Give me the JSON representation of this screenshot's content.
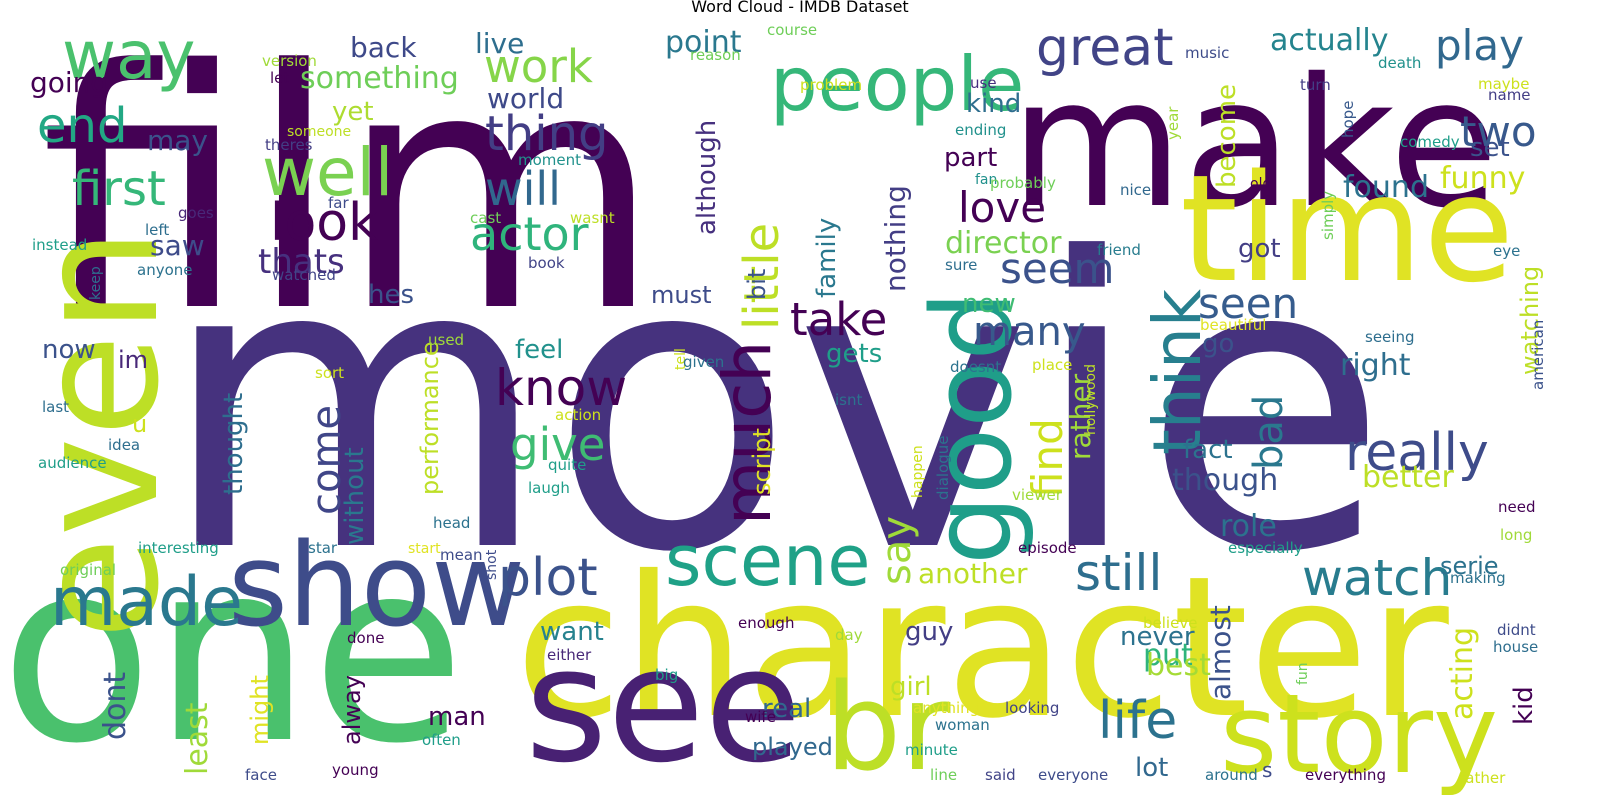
{
  "chart_data": {
    "type": "wordcloud",
    "title": "Word Cloud - IMDB Dataset",
    "colormap": "viridis",
    "background": "#ffffff",
    "colors": {
      "dark_purple": "#440154",
      "purple": "#46327e",
      "indigo": "#365c8d",
      "blue": "#277f8e",
      "teal": "#1fa187",
      "green": "#4ac16d",
      "lime": "#a0da39",
      "yellow": "#e0e324"
    },
    "words": [
      {
        "text": "movie",
        "weight": 1.0,
        "color": "#46327e"
      },
      {
        "text": "film",
        "weight": 0.82,
        "color": "#440154"
      },
      {
        "text": "one",
        "weight": 0.63,
        "color": "#4ac16d"
      },
      {
        "text": "character",
        "weight": 0.5,
        "color": "#e0e324"
      },
      {
        "text": "make",
        "weight": 0.44,
        "color": "#440154"
      },
      {
        "text": "even",
        "weight": 0.42,
        "color": "#bddf26"
      },
      {
        "text": "time",
        "weight": 0.4,
        "color": "#e0e324"
      },
      {
        "text": "see",
        "weight": 0.4,
        "color": "#482173"
      },
      {
        "text": "show",
        "weight": 0.29,
        "color": "#3e4c8a"
      },
      {
        "text": "br",
        "weight": 0.3,
        "color": "#bddf26"
      },
      {
        "text": "story",
        "weight": 0.28,
        "color": "#cde11d"
      },
      {
        "text": "good",
        "weight": 0.27,
        "color": "#1f9e89"
      },
      {
        "text": "people",
        "weight": 0.24,
        "color": "#35b779"
      },
      {
        "text": "scene",
        "weight": 0.22,
        "color": "#1fa187"
      },
      {
        "text": "made",
        "weight": 0.2,
        "color": "#2a788e"
      },
      {
        "text": "way",
        "weight": 0.2,
        "color": "#4ac16d"
      },
      {
        "text": "much",
        "weight": 0.2,
        "color": "#440154"
      },
      {
        "text": "think",
        "weight": 0.2,
        "color": "#277f8e"
      },
      {
        "text": "well",
        "weight": 0.18,
        "color": "#7ad151"
      },
      {
        "text": "great",
        "weight": 0.17,
        "color": "#414487"
      },
      {
        "text": "plot",
        "weight": 0.16,
        "color": "#3b528b"
      },
      {
        "text": "really",
        "weight": 0.16,
        "color": "#3e4c8a"
      },
      {
        "text": "life",
        "weight": 0.15,
        "color": "#2c728e"
      },
      {
        "text": "watch",
        "weight": 0.15,
        "color": "#287c8e"
      },
      {
        "text": "still",
        "weight": 0.15,
        "color": "#2e6e8e"
      },
      {
        "text": "know",
        "weight": 0.15,
        "color": "#440154"
      },
      {
        "text": "look",
        "weight": 0.15,
        "color": "#440154"
      },
      {
        "text": "thing",
        "weight": 0.15,
        "color": "#433e85"
      },
      {
        "text": "first",
        "weight": 0.14,
        "color": "#35b779"
      },
      {
        "text": "end",
        "weight": 0.14,
        "color": "#22a884"
      },
      {
        "text": "little",
        "weight": 0.14,
        "color": "#bddf26"
      },
      {
        "text": "actor",
        "weight": 0.14,
        "color": "#2fb47c"
      },
      {
        "text": "will",
        "weight": 0.14,
        "color": "#31688e"
      },
      {
        "text": "take",
        "weight": 0.13,
        "color": "#440154"
      },
      {
        "text": "give",
        "weight": 0.13,
        "color": "#3fbc73"
      },
      {
        "text": "work",
        "weight": 0.13,
        "color": "#86d549"
      },
      {
        "text": "two",
        "weight": 0.13,
        "color": "#38598c"
      },
      {
        "text": "play",
        "weight": 0.13,
        "color": "#31688e"
      },
      {
        "text": "seen",
        "weight": 0.12,
        "color": "#365c8d"
      },
      {
        "text": "seem",
        "weight": 0.12,
        "color": "#3b528b"
      },
      {
        "text": "love",
        "weight": 0.12,
        "color": "#440154"
      },
      {
        "text": "many",
        "weight": 0.12,
        "color": "#38598c"
      },
      {
        "text": "find",
        "weight": 0.12,
        "color": "#cde11d"
      },
      {
        "text": "bad",
        "weight": 0.12,
        "color": "#2a788e"
      },
      {
        "text": "come",
        "weight": 0.12,
        "color": "#404688"
      },
      {
        "text": "say",
        "weight": 0.12,
        "color": "#a0da39"
      },
      {
        "text": "thats",
        "weight": 0.1,
        "color": "#46307e"
      },
      {
        "text": "actually",
        "weight": 0.1,
        "color": "#25848e"
      },
      {
        "text": "something",
        "weight": 0.1,
        "color": "#6ece58"
      },
      {
        "text": "director",
        "weight": 0.1,
        "color": "#7ad151"
      },
      {
        "text": "point",
        "weight": 0.1,
        "color": "#2a788e"
      },
      {
        "text": "least",
        "weight": 0.1,
        "color": "#a0da39"
      },
      {
        "text": "dont",
        "weight": 0.1,
        "color": "#3b528b"
      },
      {
        "text": "put",
        "weight": 0.1,
        "color": "#2fb47c"
      },
      {
        "text": "best",
        "weight": 0.1,
        "color": "#a5db36"
      },
      {
        "text": "though",
        "weight": 0.1,
        "color": "#3b528b"
      },
      {
        "text": "acting",
        "weight": 0.1,
        "color": "#cde11d"
      },
      {
        "text": "funny",
        "weight": 0.1,
        "color": "#cde11d"
      },
      {
        "text": "found",
        "weight": 0.1,
        "color": "#2c728e"
      },
      {
        "text": "right",
        "weight": 0.1,
        "color": "#2e6e8e"
      },
      {
        "text": "role",
        "weight": 0.1,
        "color": "#2c728e"
      },
      {
        "text": "better",
        "weight": 0.1,
        "color": "#bddf26"
      },
      {
        "text": "another",
        "weight": 0.1,
        "color": "#bddf26"
      },
      {
        "text": "nothing",
        "weight": 0.1,
        "color": "#433e85"
      },
      {
        "text": "rather",
        "weight": 0.1,
        "color": "#a0da39"
      },
      {
        "text": "almost",
        "weight": 0.1,
        "color": "#3b528b"
      },
      {
        "text": "become",
        "weight": 0.1,
        "color": "#bddf26"
      },
      {
        "text": "back",
        "weight": 0.09,
        "color": "#3e4989"
      },
      {
        "text": "world",
        "weight": 0.09,
        "color": "#3e4989"
      },
      {
        "text": "live",
        "weight": 0.09,
        "color": "#2e6e8e"
      },
      {
        "text": "going",
        "weight": 0.09,
        "color": "#440154"
      },
      {
        "text": "may",
        "weight": 0.09,
        "color": "#3b528b"
      },
      {
        "text": "saw",
        "weight": 0.09,
        "color": "#3e4c8a"
      },
      {
        "text": "yet",
        "weight": 0.09,
        "color": "#addc30"
      },
      {
        "text": "although",
        "weight": 0.09,
        "color": "#46307e"
      },
      {
        "text": "kind",
        "weight": 0.09,
        "color": "#2e6e8e"
      },
      {
        "text": "set",
        "weight": 0.09,
        "color": "#3b528b"
      },
      {
        "text": "part",
        "weight": 0.09,
        "color": "#440154"
      },
      {
        "text": "family",
        "weight": 0.09,
        "color": "#2a788e"
      },
      {
        "text": "got",
        "weight": 0.09,
        "color": "#433e85"
      },
      {
        "text": "new",
        "weight": 0.09,
        "color": "#3fbc73"
      },
      {
        "text": "hes",
        "weight": 0.09,
        "color": "#3b528b"
      },
      {
        "text": "go",
        "weight": 0.09,
        "color": "#3b528b"
      },
      {
        "text": "gets",
        "weight": 0.09,
        "color": "#1f9e89"
      },
      {
        "text": "feel",
        "weight": 0.09,
        "color": "#21918c"
      },
      {
        "text": "must",
        "weight": 0.09,
        "color": "#3e4c8a"
      },
      {
        "text": "bit",
        "weight": 0.09,
        "color": "#3b528b"
      },
      {
        "text": "watching",
        "weight": 0.09,
        "color": "#bddf26"
      },
      {
        "text": "fact",
        "weight": 0.09,
        "color": "#2c728e"
      },
      {
        "text": "without",
        "weight": 0.09,
        "color": "#2a788e"
      },
      {
        "text": "thought",
        "weight": 0.09,
        "color": "#2e6e8e"
      },
      {
        "text": "performance",
        "weight": 0.09,
        "color": "#bddf26"
      },
      {
        "text": "script",
        "weight": 0.09,
        "color": "#e0e324"
      },
      {
        "text": "now",
        "weight": 0.09,
        "color": "#3b528b"
      },
      {
        "text": "im",
        "weight": 0.09,
        "color": "#482878"
      },
      {
        "text": "want",
        "weight": 0.09,
        "color": "#26828e"
      },
      {
        "text": "never",
        "weight": 0.09,
        "color": "#2c728e"
      },
      {
        "text": "guy",
        "weight": 0.09,
        "color": "#433e85"
      },
      {
        "text": "girl",
        "weight": 0.09,
        "color": "#bddf26"
      },
      {
        "text": "serie",
        "weight": 0.09,
        "color": "#2c728e"
      },
      {
        "text": "might",
        "weight": 0.09,
        "color": "#e0e324"
      },
      {
        "text": "alway",
        "weight": 0.09,
        "color": "#440154"
      },
      {
        "text": "man",
        "weight": 0.09,
        "color": "#440154"
      },
      {
        "text": "real",
        "weight": 0.09,
        "color": "#31688e"
      },
      {
        "text": "played",
        "weight": 0.09,
        "color": "#31688e"
      },
      {
        "text": "lot",
        "weight": 0.09,
        "color": "#31688e"
      },
      {
        "text": "kid",
        "weight": 0.09,
        "color": "#440154"
      },
      {
        "text": "u",
        "weight": 0.09,
        "color": "#cde11d"
      },
      {
        "text": "s",
        "weight": 0.08,
        "color": "#3e4c8a"
      },
      {
        "text": "course",
        "weight": 0.05,
        "color": "#6ece58"
      },
      {
        "text": "reason",
        "weight": 0.05,
        "color": "#6ece58"
      },
      {
        "text": "music",
        "weight": 0.05,
        "color": "#3e4c8a"
      },
      {
        "text": "version",
        "weight": 0.05,
        "color": "#a0da39"
      },
      {
        "text": "let",
        "weight": 0.05,
        "color": "#440154"
      },
      {
        "text": "problem",
        "weight": 0.05,
        "color": "#cde11d"
      },
      {
        "text": "use",
        "weight": 0.05,
        "color": "#46307e"
      },
      {
        "text": "turn",
        "weight": 0.05,
        "color": "#433e85"
      },
      {
        "text": "death",
        "weight": 0.05,
        "color": "#21918c"
      },
      {
        "text": "maybe",
        "weight": 0.05,
        "color": "#cde11d"
      },
      {
        "text": "name",
        "weight": 0.05,
        "color": "#433e85"
      },
      {
        "text": "someone",
        "weight": 0.05,
        "color": "#bddf26"
      },
      {
        "text": "theres",
        "weight": 0.05,
        "color": "#433e85"
      },
      {
        "text": "ending",
        "weight": 0.05,
        "color": "#21918c"
      },
      {
        "text": "year",
        "weight": 0.05,
        "color": "#a0da39"
      },
      {
        "text": "hope",
        "weight": 0.05,
        "color": "#38598c"
      },
      {
        "text": "comedy",
        "weight": 0.05,
        "color": "#1f9e89"
      },
      {
        "text": "moment",
        "weight": 0.05,
        "color": "#21918c"
      },
      {
        "text": "fan",
        "weight": 0.05,
        "color": "#21918c"
      },
      {
        "text": "probably",
        "weight": 0.05,
        "color": "#6ece58"
      },
      {
        "text": "old",
        "weight": 0.05,
        "color": "#440154"
      },
      {
        "text": "far",
        "weight": 0.05,
        "color": "#3e4c8a"
      },
      {
        "text": "nice",
        "weight": 0.05,
        "color": "#31688e"
      },
      {
        "text": "goes",
        "weight": 0.05,
        "color": "#482878"
      },
      {
        "text": "cast",
        "weight": 0.05,
        "color": "#6ece58"
      },
      {
        "text": "wasnt",
        "weight": 0.05,
        "color": "#bddf26"
      },
      {
        "text": "simply",
        "weight": 0.05,
        "color": "#6ece58"
      },
      {
        "text": "left",
        "weight": 0.05,
        "color": "#2e6e8e"
      },
      {
        "text": "instead",
        "weight": 0.05,
        "color": "#1f9e89"
      },
      {
        "text": "friend",
        "weight": 0.05,
        "color": "#287c8e"
      },
      {
        "text": "eye",
        "weight": 0.05,
        "color": "#2c728e"
      },
      {
        "text": "anyone",
        "weight": 0.05,
        "color": "#2c728e"
      },
      {
        "text": "book",
        "weight": 0.05,
        "color": "#414487"
      },
      {
        "text": "sure",
        "weight": 0.05,
        "color": "#2e6e8e"
      },
      {
        "text": "watched",
        "weight": 0.05,
        "color": "#414487"
      },
      {
        "text": "keep",
        "weight": 0.05,
        "color": "#2e6e8e"
      },
      {
        "text": "used",
        "weight": 0.05,
        "color": "#a0da39"
      },
      {
        "text": "tell",
        "weight": 0.05,
        "color": "#cde11d"
      },
      {
        "text": "beautiful",
        "weight": 0.05,
        "color": "#e0e324"
      },
      {
        "text": "american",
        "weight": 0.05,
        "color": "#3b528b"
      },
      {
        "text": "seeing",
        "weight": 0.05,
        "color": "#2e6e8e"
      },
      {
        "text": "given",
        "weight": 0.05,
        "color": "#2c728e"
      },
      {
        "text": "doesnt",
        "weight": 0.05,
        "color": "#2c728e"
      },
      {
        "text": "place",
        "weight": 0.05,
        "color": "#cde11d"
      },
      {
        "text": "sort",
        "weight": 0.05,
        "color": "#cde11d"
      },
      {
        "text": "hollywood",
        "weight": 0.05,
        "color": "#bddf26"
      },
      {
        "text": "isnt",
        "weight": 0.05,
        "color": "#2c728e"
      },
      {
        "text": "last",
        "weight": 0.05,
        "color": "#2e6e8e"
      },
      {
        "text": "action",
        "weight": 0.05,
        "color": "#cde11d"
      },
      {
        "text": "idea",
        "weight": 0.05,
        "color": "#2e6e8e"
      },
      {
        "text": "dialogue",
        "weight": 0.05,
        "color": "#2c728e"
      },
      {
        "text": "audience",
        "weight": 0.05,
        "color": "#1f9e89"
      },
      {
        "text": "quite",
        "weight": 0.05,
        "color": "#1f9e89"
      },
      {
        "text": "laugh",
        "weight": 0.05,
        "color": "#1f9e89"
      },
      {
        "text": "happen",
        "weight": 0.05,
        "color": "#cde11d"
      },
      {
        "text": "viewer",
        "weight": 0.05,
        "color": "#a0da39"
      },
      {
        "text": "need",
        "weight": 0.05,
        "color": "#440154"
      },
      {
        "text": "head",
        "weight": 0.05,
        "color": "#2c728e"
      },
      {
        "text": "long",
        "weight": 0.05,
        "color": "#a0da39"
      },
      {
        "text": "interesting",
        "weight": 0.05,
        "color": "#1f9e89"
      },
      {
        "text": "star",
        "weight": 0.05,
        "color": "#2c728e"
      },
      {
        "text": "episode",
        "weight": 0.05,
        "color": "#440154"
      },
      {
        "text": "especially",
        "weight": 0.05,
        "color": "#1f9e89"
      },
      {
        "text": "mean",
        "weight": 0.05,
        "color": "#3e4c8a"
      },
      {
        "text": "start",
        "weight": 0.05,
        "color": "#e0e324"
      },
      {
        "text": "original",
        "weight": 0.05,
        "color": "#6ece58"
      },
      {
        "text": "shot",
        "weight": 0.05,
        "color": "#3e4c8a"
      },
      {
        "text": "making",
        "weight": 0.05,
        "color": "#2c728e"
      },
      {
        "text": "done",
        "weight": 0.05,
        "color": "#440154"
      },
      {
        "text": "enough",
        "weight": 0.05,
        "color": "#440154"
      },
      {
        "text": "day",
        "weight": 0.05,
        "color": "#a0da39"
      },
      {
        "text": "believe",
        "weight": 0.05,
        "color": "#cde11d"
      },
      {
        "text": "didnt",
        "weight": 0.05,
        "color": "#3e4c8a"
      },
      {
        "text": "house",
        "weight": 0.05,
        "color": "#2e6e8e"
      },
      {
        "text": "either",
        "weight": 0.05,
        "color": "#482878"
      },
      {
        "text": "big",
        "weight": 0.05,
        "color": "#1f9e89"
      },
      {
        "text": "fun",
        "weight": 0.05,
        "color": "#6ece58"
      },
      {
        "text": "anything",
        "weight": 0.05,
        "color": "#e0e324"
      },
      {
        "text": "looking",
        "weight": 0.05,
        "color": "#414487"
      },
      {
        "text": "wife",
        "weight": 0.05,
        "color": "#440154"
      },
      {
        "text": "woman",
        "weight": 0.05,
        "color": "#2c728e"
      },
      {
        "text": "often",
        "weight": 0.05,
        "color": "#1f9e89"
      },
      {
        "text": "minute",
        "weight": 0.05,
        "color": "#1f9e89"
      },
      {
        "text": "face",
        "weight": 0.05,
        "color": "#3e4c8a"
      },
      {
        "text": "young",
        "weight": 0.05,
        "color": "#440154"
      },
      {
        "text": "line",
        "weight": 0.05,
        "color": "#6ece58"
      },
      {
        "text": "said",
        "weight": 0.05,
        "color": "#414487"
      },
      {
        "text": "everyone",
        "weight": 0.05,
        "color": "#3e4c8a"
      },
      {
        "text": "around",
        "weight": 0.05,
        "color": "#2c728e"
      },
      {
        "text": "everything",
        "weight": 0.05,
        "color": "#440154"
      },
      {
        "text": "father",
        "weight": 0.05,
        "color": "#cde11d"
      }
    ]
  }
}
